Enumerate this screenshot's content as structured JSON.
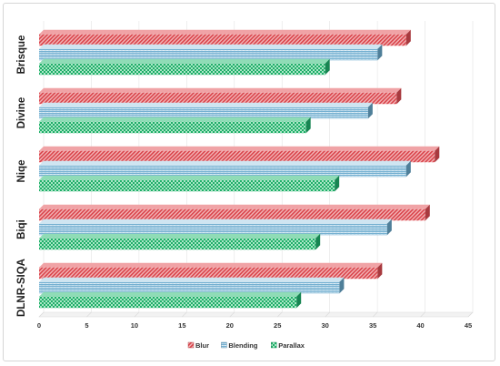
{
  "chart_data": {
    "type": "bar",
    "orientation": "horizontal",
    "categories": [
      "Brisque",
      "Divine",
      "Niqe",
      "Biqi",
      "DLNR-SIQA"
    ],
    "series": [
      {
        "name": "Blur",
        "values": [
          38.5,
          37.5,
          41.5,
          40.5,
          35.5
        ]
      },
      {
        "name": "Blending",
        "values": [
          35.5,
          34.5,
          38.5,
          36.5,
          31.5
        ]
      },
      {
        "name": "Parallax",
        "values": [
          30,
          28,
          31,
          29,
          27
        ]
      }
    ],
    "x_ticks": [
      0,
      5,
      10,
      15,
      20,
      25,
      30,
      35,
      40,
      45
    ],
    "xlim": [
      0,
      45
    ],
    "grid": true,
    "legend_position": "bottom",
    "colors": {
      "Blur": "#e05a5e",
      "Blending": "#5ea3c9",
      "Parallax": "#20b46e"
    }
  }
}
